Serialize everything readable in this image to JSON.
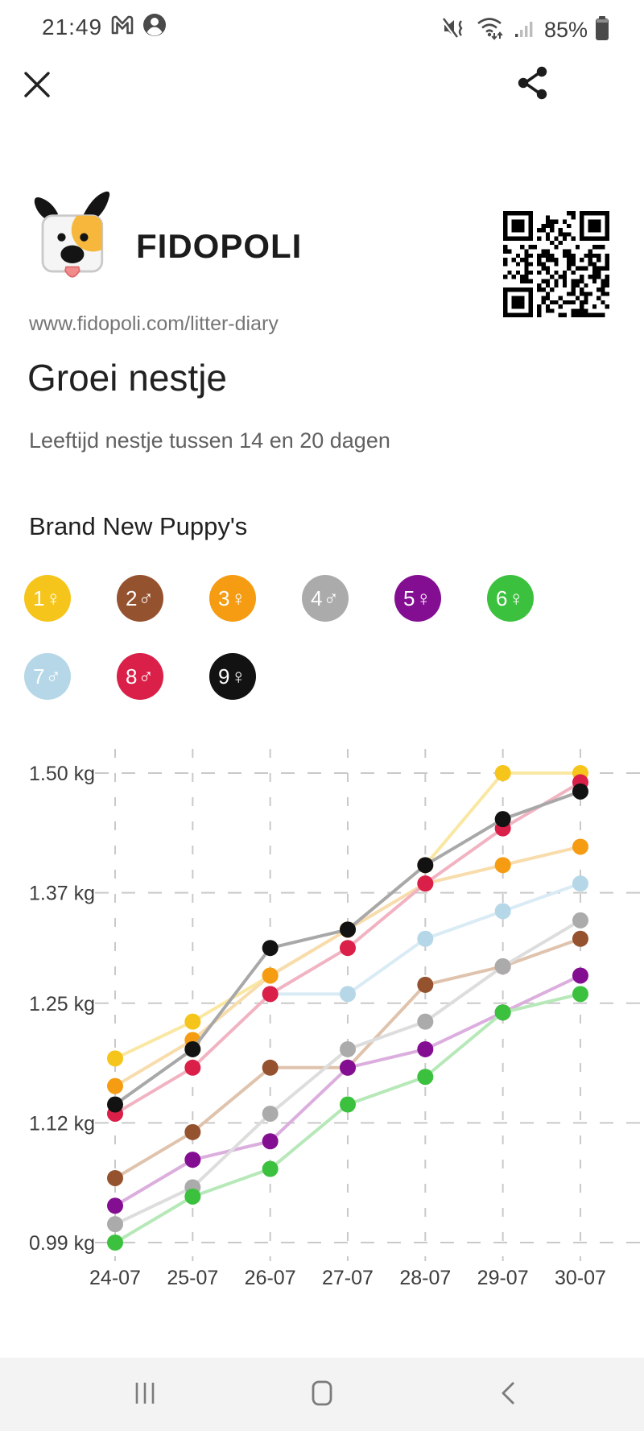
{
  "status": {
    "time": "21:49",
    "battery": "85%",
    "left_icons": [
      "gmail-icon",
      "account-icon"
    ],
    "right_icons": [
      "vibrate-mute-icon",
      "wifi-icon",
      "signal-icon",
      "battery-icon"
    ]
  },
  "header": {
    "close_icon": "close-icon",
    "share_icon": "share-icon"
  },
  "brand": {
    "name": "FIDOPOLI",
    "logo": "dog-logo",
    "url": "www.fidopoli.com/litter-diary",
    "qr": "qr-code"
  },
  "page": {
    "title": "Groei nestje",
    "subtitle": "Leeftijd nestje tussen 14 en 20 dagen",
    "section_heading": "Brand New Puppy's"
  },
  "chart_data": {
    "type": "line",
    "title": "Groei nestje",
    "categories": [
      "24-07",
      "25-07",
      "26-07",
      "27-07",
      "28-07",
      "29-07",
      "30-07"
    ],
    "y_ticks": [
      {
        "label": "1.50 kg",
        "value": 1.5
      },
      {
        "label": "1.37 kg",
        "value": 1.37
      },
      {
        "label": "1.25 kg",
        "value": 1.25
      },
      {
        "label": "1.12 kg",
        "value": 1.12
      },
      {
        "label": "0.99 kg",
        "value": 0.99
      }
    ],
    "ylim": [
      0.99,
      1.5
    ],
    "unit": "kg",
    "grid": "dashed",
    "legend_position": "badges-above-chart",
    "series": [
      {
        "number": 1,
        "label": "1♀",
        "gender": "♀",
        "dot_color": "#f5c51c",
        "line_color": "#fae7a2",
        "values": [
          1.19,
          1.23,
          1.28,
          1.33,
          1.4,
          1.5,
          1.5
        ]
      },
      {
        "number": 3,
        "label": "3♀",
        "gender": "♀",
        "dot_color": "#f59c12",
        "line_color": "#f8dcab",
        "values": [
          1.16,
          1.21,
          1.28,
          1.33,
          1.38,
          1.4,
          1.42
        ]
      },
      {
        "number": 2,
        "label": "2♂",
        "gender": "♂",
        "dot_color": "#95522f",
        "line_color": "#dfc3ad",
        "values": [
          1.06,
          1.11,
          1.18,
          1.18,
          1.27,
          1.29,
          1.32
        ]
      },
      {
        "number": 5,
        "label": "5♀",
        "gender": "♀",
        "dot_color": "#840e92",
        "line_color": "#dbaede",
        "values": [
          1.03,
          1.08,
          1.1,
          1.18,
          1.2,
          1.24,
          1.28
        ]
      },
      {
        "number": 7,
        "label": "7♂",
        "gender": "♂",
        "dot_color": "#b5d7e8",
        "line_color": "#d9ebf4",
        "values": [
          null,
          null,
          1.26,
          1.26,
          1.32,
          1.35,
          1.38
        ]
      },
      {
        "number": 4,
        "label": "4♂",
        "gender": "♂",
        "dot_color": "#ababab",
        "line_color": "#dddddd",
        "values": [
          1.01,
          1.05,
          1.13,
          1.2,
          1.23,
          1.29,
          1.34
        ]
      },
      {
        "number": 6,
        "label": "6♀",
        "gender": "♀",
        "dot_color": "#3cc13e",
        "line_color": "#b6e8b8",
        "values": [
          0.99,
          1.04,
          1.07,
          1.14,
          1.17,
          1.24,
          1.26
        ]
      },
      {
        "number": 8,
        "label": "8♂",
        "gender": "♂",
        "dot_color": "#da1f49",
        "line_color": "#f1b3c2",
        "values": [
          1.13,
          1.18,
          1.26,
          1.31,
          1.38,
          1.44,
          1.49
        ]
      },
      {
        "number": 9,
        "label": "9♀",
        "gender": "♀",
        "dot_color": "#121212",
        "line_color": "#a8a8a8",
        "values": [
          1.14,
          1.2,
          1.31,
          1.33,
          1.4,
          1.45,
          1.48
        ]
      }
    ]
  },
  "nav": {
    "items": [
      "recents-icon",
      "home-icon",
      "back-icon"
    ]
  },
  "colors": {
    "grid": "#c9c9c9",
    "axis_text": "#3d3d3d",
    "nav_icon": "#7b7b7b"
  }
}
